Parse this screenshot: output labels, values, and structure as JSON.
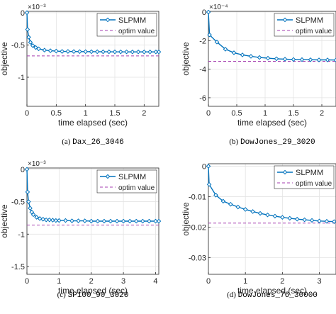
{
  "colors": {
    "series": "#0072BD",
    "optim": "#A63FB0",
    "grid": "#e3e3e3",
    "axis": "#262626"
  },
  "chart_data": [
    {
      "type": "line",
      "caption_label": "(a)",
      "caption_name": "Dax_26_3046",
      "xlabel": "time elapsed (sec)",
      "ylabel": "objective",
      "exponent": "×10⁻³",
      "xlim": [
        0,
        2.25
      ],
      "ylim": [
        -1.45,
        0.02
      ],
      "xticks": [
        0,
        0.5,
        1,
        1.5,
        2
      ],
      "xtick_labels": [
        "0",
        "0.5",
        "1",
        "1.5",
        "2"
      ],
      "yticks": [
        0,
        -0.5,
        -1
      ],
      "ytick_labels": [
        "0",
        "-0.5",
        "-1"
      ],
      "grid": true,
      "legend_position": "top-right",
      "series": [
        {
          "name": "SLPMM",
          "x": [
            0,
            0.01,
            0.03,
            0.06,
            0.1,
            0.15,
            0.2,
            0.3,
            0.4,
            0.5,
            0.6,
            0.7,
            0.8,
            0.9,
            1.0,
            1.1,
            1.2,
            1.3,
            1.4,
            1.5,
            1.6,
            1.7,
            1.8,
            1.9,
            2.0,
            2.1,
            2.2,
            2.25
          ],
          "y": [
            0,
            -0.26,
            -0.38,
            -0.46,
            -0.51,
            -0.54,
            -0.56,
            -0.58,
            -0.59,
            -0.595,
            -0.6,
            -0.6,
            -0.602,
            -0.603,
            -0.604,
            -0.605,
            -0.605,
            -0.606,
            -0.606,
            -0.607,
            -0.607,
            -0.607,
            -0.608,
            -0.608,
            -0.608,
            -0.608,
            -0.608,
            -0.608
          ]
        }
      ],
      "reference": {
        "name": "optim value",
        "y": -0.67
      }
    },
    {
      "type": "line",
      "caption_label": "(b)",
      "caption_name": "DowJones_29_3020",
      "xlabel": "time elapsed (sec)",
      "ylabel": "objective",
      "exponent": "×10⁻⁴",
      "xlim": [
        0,
        2.25
      ],
      "ylim": [
        -6.6,
        0.05
      ],
      "xticks": [
        0,
        0.5,
        1,
        1.5,
        2
      ],
      "xtick_labels": [
        "0",
        "0.5",
        "1",
        "1.5",
        "2"
      ],
      "yticks": [
        0,
        -2,
        -4,
        -6
      ],
      "ytick_labels": [
        "0",
        "-2",
        "-4",
        "-6"
      ],
      "grid": true,
      "legend_position": "top-right",
      "series": [
        {
          "name": "SLPMM",
          "x": [
            0,
            0.02,
            0.15,
            0.3,
            0.45,
            0.6,
            0.75,
            0.9,
            1.05,
            1.2,
            1.35,
            1.5,
            1.65,
            1.8,
            1.95,
            2.1,
            2.25
          ],
          "y": [
            0,
            -1.6,
            -2.1,
            -2.6,
            -2.85,
            -3.0,
            -3.1,
            -3.18,
            -3.23,
            -3.27,
            -3.3,
            -3.32,
            -3.33,
            -3.34,
            -3.35,
            -3.35,
            -3.36
          ]
        }
      ],
      "reference": {
        "name": "optim value",
        "y": -3.45
      }
    },
    {
      "type": "line",
      "caption_label": "(c)",
      "caption_name": "SP100_90_3020",
      "xlabel": "time elapsed (sec)",
      "ylabel": "objective",
      "exponent": "×10⁻³",
      "xlim": [
        0,
        4.1
      ],
      "ylim": [
        -1.62,
        0.02
      ],
      "xticks": [
        0,
        1,
        2,
        3,
        4
      ],
      "xtick_labels": [
        "0",
        "1",
        "2",
        "3",
        "4"
      ],
      "yticks": [
        0,
        -0.5,
        -1,
        -1.5
      ],
      "ytick_labels": [
        "0",
        "-0.5",
        "-1",
        "-1.5"
      ],
      "grid": true,
      "legend_position": "top-right",
      "series": [
        {
          "name": "SLPMM",
          "x": [
            0,
            0.02,
            0.05,
            0.1,
            0.15,
            0.2,
            0.3,
            0.4,
            0.5,
            0.6,
            0.7,
            0.8,
            0.9,
            1.0,
            1.2,
            1.4,
            1.6,
            1.8,
            2.0,
            2.2,
            2.4,
            2.6,
            2.8,
            3.0,
            3.2,
            3.4,
            3.6,
            3.8,
            4.0,
            4.1
          ],
          "y": [
            0,
            -0.35,
            -0.5,
            -0.6,
            -0.66,
            -0.7,
            -0.74,
            -0.76,
            -0.77,
            -0.78,
            -0.78,
            -0.785,
            -0.79,
            -0.79,
            -0.79,
            -0.795,
            -0.795,
            -0.795,
            -0.8,
            -0.8,
            -0.8,
            -0.8,
            -0.8,
            -0.8,
            -0.8,
            -0.8,
            -0.8,
            -0.8,
            -0.8,
            -0.8
          ]
        }
      ],
      "reference": {
        "name": "optim value",
        "y": -0.86
      }
    },
    {
      "type": "line",
      "caption_label": "(d)",
      "caption_name": "DowJones_76_30000",
      "xlabel": "time elapsed (sec)",
      "ylabel": "objective",
      "exponent": "",
      "xlim": [
        0,
        3.45
      ],
      "ylim": [
        -0.0355,
        0.0008
      ],
      "xticks": [
        0,
        1,
        2,
        3
      ],
      "xtick_labels": [
        "0",
        "1",
        "2",
        "3"
      ],
      "yticks": [
        0,
        -0.01,
        -0.02,
        -0.03
      ],
      "ytick_labels": [
        "0",
        "-0.01",
        "-0.02",
        "-0.03"
      ],
      "grid": true,
      "legend_position": "top-right",
      "series": [
        {
          "name": "SLPMM",
          "x": [
            0,
            0.02,
            0.2,
            0.4,
            0.6,
            0.8,
            1.0,
            1.2,
            1.4,
            1.6,
            1.8,
            2.0,
            2.2,
            2.4,
            2.6,
            2.8,
            3.0,
            3.2,
            3.4
          ],
          "y": [
            0,
            -0.006,
            -0.0095,
            -0.0115,
            -0.0125,
            -0.0134,
            -0.0142,
            -0.0149,
            -0.0155,
            -0.016,
            -0.0164,
            -0.0168,
            -0.0171,
            -0.0174,
            -0.0176,
            -0.0178,
            -0.018,
            -0.0181,
            -0.0182
          ]
        }
      ],
      "reference": {
        "name": "optim value",
        "y": -0.0187
      }
    }
  ]
}
